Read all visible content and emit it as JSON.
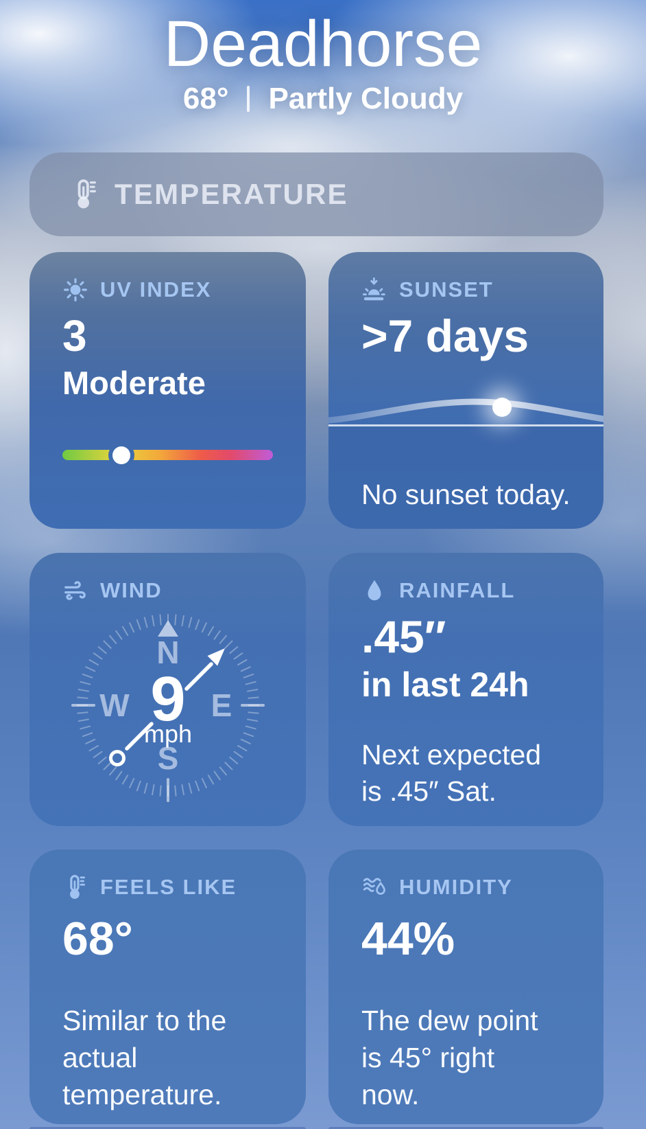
{
  "header": {
    "city": "Deadhorse",
    "temperature": "68°",
    "separator": "|",
    "condition": "Partly Cloudy"
  },
  "temperature_bar": {
    "label": "TEMPERATURE",
    "icon": "thermometer-icon"
  },
  "cards": {
    "uv_index": {
      "title": "UV INDEX",
      "icon": "sun-max-icon",
      "value": "3",
      "category": "Moderate",
      "scale_position": 0.28,
      "scale_gradient": [
        "#6fca43 0%",
        "#e9d43c 26%",
        "#f2a93b 46%",
        "#ee5b49 66%",
        "#e24a6b 80%",
        "#c05cd9 100%"
      ]
    },
    "sunset": {
      "title": "SUNSET",
      "icon": "sunset-icon",
      "value": ">7 days",
      "note": "No sunset today.",
      "sun_position": 0.63
    },
    "wind": {
      "title": "WIND",
      "icon": "wind-icon",
      "speed": "9",
      "unit": "mph",
      "direction": "NE",
      "cardinals": {
        "n": "N",
        "e": "E",
        "s": "S",
        "w": "W"
      }
    },
    "rainfall": {
      "title": "RAINFALL",
      "icon": "drop-icon",
      "value": ".45″",
      "subtitle": "in last 24h",
      "note": "Next expected\nis .45″ Sat."
    },
    "feels_like": {
      "title": "FEELS LIKE",
      "icon": "thermometer-icon",
      "value": "68°",
      "note": "Similar to the\nactual\ntemperature."
    },
    "humidity": {
      "title": "HUMIDITY",
      "icon": "humidity-icon",
      "value": "44%",
      "note": "The dew point\nis 45° right\nnow."
    }
  }
}
